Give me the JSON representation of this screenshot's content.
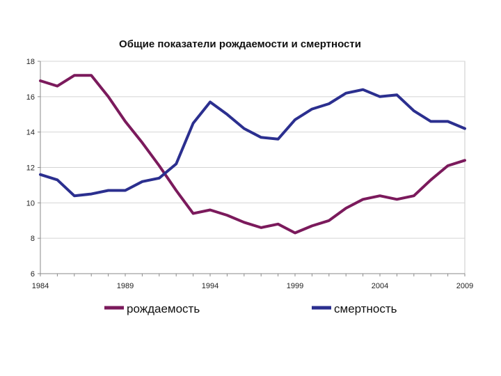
{
  "chart_data": {
    "type": "line",
    "title": "Общие показатели рождаемости и смертности",
    "xlabel": "",
    "ylabel": "",
    "xlim": [
      1984,
      2009
    ],
    "ylim": [
      6,
      18
    ],
    "x_ticks": [
      "1984",
      "1989",
      "1994",
      "1999",
      "2004",
      "2009"
    ],
    "y_ticks": [
      "6",
      "8",
      "10",
      "12",
      "14",
      "16",
      "18"
    ],
    "grid": "horizontal",
    "legend_position": "bottom",
    "x": [
      1984,
      1985,
      1986,
      1987,
      1988,
      1989,
      1990,
      1991,
      1992,
      1993,
      1994,
      1995,
      1996,
      1997,
      1998,
      1999,
      2000,
      2001,
      2002,
      2003,
      2004,
      2005,
      2006,
      2007,
      2008,
      2009
    ],
    "series": [
      {
        "name": "рождаемость",
        "color": "#7b1a5c",
        "values": [
          16.9,
          16.6,
          17.2,
          17.2,
          16.0,
          14.6,
          13.4,
          12.1,
          10.7,
          9.4,
          9.6,
          9.3,
          8.9,
          8.6,
          8.8,
          8.3,
          8.7,
          9.0,
          9.7,
          10.2,
          10.4,
          10.2,
          10.4,
          11.3,
          12.1,
          12.4
        ]
      },
      {
        "name": "смертность",
        "color": "#2b2f8f",
        "values": [
          11.6,
          11.3,
          10.4,
          10.5,
          10.7,
          10.7,
          11.2,
          11.4,
          12.2,
          14.5,
          15.7,
          15.0,
          14.2,
          13.7,
          13.6,
          14.7,
          15.3,
          15.6,
          16.2,
          16.4,
          16.0,
          16.1,
          15.2,
          14.6,
          14.6,
          14.2
        ]
      }
    ]
  }
}
